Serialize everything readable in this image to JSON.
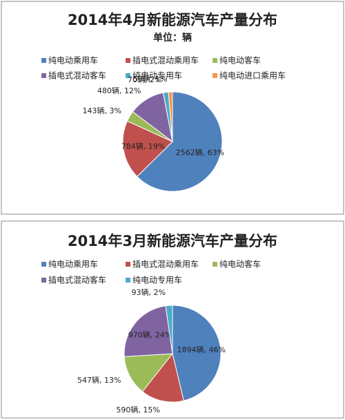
{
  "chart_data": [
    {
      "type": "pie",
      "title": "2014年4月新能源汽车产量分布",
      "subtitle": "单位：辆",
      "categories": [
        "纯电动乘用车",
        "插电式混动乘用车",
        "纯电动客车",
        "插电式混动客车",
        "纯电动专用车",
        "纯电动进口乘用车"
      ],
      "values": [
        2562,
        784,
        143,
        480,
        70,
        53
      ],
      "value_labels": [
        "2562辆, 63%",
        "784辆, 19%",
        "143辆, 3%",
        "480辆, 12%",
        "70辆, 2%",
        "53辆, 1%"
      ],
      "colors": [
        "#4f81bd",
        "#c0504d",
        "#9bbb59",
        "#8064a2",
        "#4bacc6",
        "#f79646"
      ]
    },
    {
      "type": "pie",
      "title": "2014年3月新能源汽车产量分布",
      "categories": [
        "纯电动乘用车",
        "插电式混动乘用车",
        "纯电动客车",
        "插电式混动客车",
        "纯电动专用车"
      ],
      "values": [
        1894,
        590,
        547,
        970,
        93
      ],
      "value_labels": [
        "1894辆, 46%",
        "590辆, 15%",
        "547辆, 13%",
        "970辆, 24%",
        "93辆, 2%"
      ],
      "colors": [
        "#4f81bd",
        "#c0504d",
        "#9bbb59",
        "#8064a2",
        "#4bacc6"
      ]
    }
  ]
}
